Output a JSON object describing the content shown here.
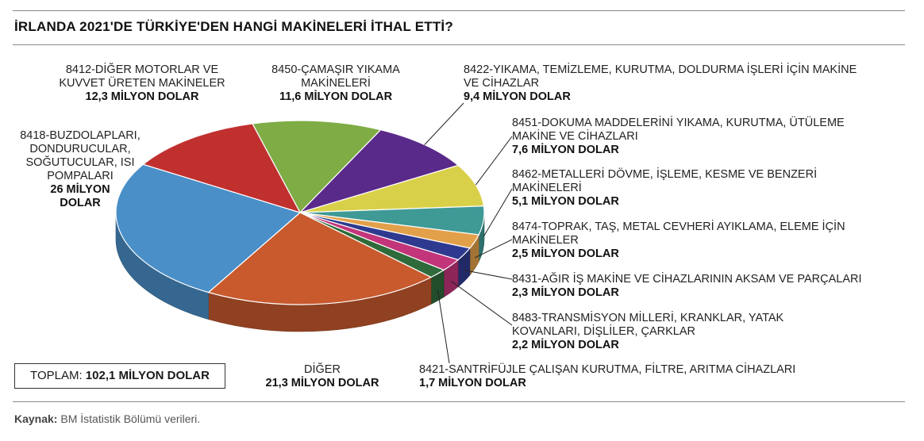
{
  "title": "İRLANDA 2021'DE TÜRKİYE'DEN HANGİ MAKİNELERİ İTHAL ETTİ?",
  "total": {
    "label": "TOPLAM:",
    "value": "102,1 MİLYON DOLAR"
  },
  "source": {
    "label": "Kaynak:",
    "text": "BM İstatistik Bölümü verileri."
  },
  "chart_data": {
    "type": "pie",
    "unit": "MİLYON DOLAR",
    "slices": [
      {
        "name": "8450-ÇAMAŞIR YIKAMA MAKİNELERİ",
        "value": 11.6,
        "label": "11,6 MİLYON DOLAR",
        "color": "#7fac45"
      },
      {
        "name": "8422-YIKAMA, TEMİZLEME, KURUTMA, DOLDURMA İŞLERİ İÇİN MAKİNE VE CİHAZLAR",
        "value": 9.4,
        "label": "9,4 MİLYON DOLAR",
        "color": "#5a2a8a"
      },
      {
        "name": "8451-DOKUMA MADDELERİNİ YIKAMA, KURUTMA, ÜTÜLEME MAKİNE VE CİHAZLARI",
        "value": 7.6,
        "label": "7,6 MİLYON DOLAR",
        "color": "#d9d04a"
      },
      {
        "name": "8462-METALLERİ DÖVME, İŞLEME, KESME VE BENZERİ MAKİNELERİ",
        "value": 5.1,
        "label": "5,1 MİLYON DOLAR",
        "color": "#3f9a96"
      },
      {
        "name": "8474-TOPRAK, TAŞ, METAL CEVHERİ AYIKLAMA, ELEME İÇİN MAKİNELER",
        "value": 2.5,
        "label": "2,5 MİLYON DOLAR",
        "color": "#e3a04a"
      },
      {
        "name": "8431-AĞIR İŞ MAKİNE VE CİHAZLARININ AKSAM VE PARÇALARI",
        "value": 2.3,
        "label": "2,3 MİLYON DOLAR",
        "color": "#2e3a8f"
      },
      {
        "name": "8483-TRANSMİSYON MİLLERİ, KRANKLAR, YATAK KOVANLARI, DİŞLİLER, ÇARKLAR",
        "value": 2.2,
        "label": "2,2 MİLYON DOLAR",
        "color": "#c2357a"
      },
      {
        "name": "8421-SANTRİFÜJLE ÇALIŞAN KURUTMA, FİLTRE, ARITMA CİHAZLARI",
        "value": 1.7,
        "label": "1,7 MİLYON DOLAR",
        "color": "#2f6b3a"
      },
      {
        "name": "DİĞER",
        "value": 21.3,
        "label": "21,3 MİLYON DOLAR",
        "color": "#c85a2e"
      },
      {
        "name": "8418-BUZDOLAPLARI, DONDURUCULAR, SOĞUTUCULAR, ISI POMPALARI",
        "value": 26,
        "label": "26 MİLYON DOLAR",
        "color": "#4a8fc8"
      },
      {
        "name": "8412-DİĞER MOTORLAR VE KUVVET ÜRETEN MAKİNELER",
        "value": 12.3,
        "label": "12,3 MİLYON DOLAR",
        "color": "#c0302f"
      }
    ],
    "legend": "none"
  },
  "labels": {
    "s0": {
      "line1": "8450-ÇAMAŞIR YIKAMA",
      "line2": "MAKİNELERİ"
    },
    "s1": {
      "line1": "8422-YIKAMA, TEMİZLEME, KURUTMA, DOLDURMA İŞLERİ İÇİN MAKİNE",
      "line2": "VE CİHAZLAR"
    },
    "s2": {
      "line1": "8451-DOKUMA MADDELERİNİ YIKAMA, KURUTMA, ÜTÜLEME",
      "line2": "MAKİNE VE CİHAZLARI"
    },
    "s3": {
      "line1": "8462-METALLERİ DÖVME, İŞLEME, KESME VE BENZERİ",
      "line2": "MAKİNELERİ"
    },
    "s4": {
      "line1": "8474-TOPRAK, TAŞ, METAL CEVHERİ AYIKLAMA, ELEME İÇİN",
      "line2": "MAKİNELER"
    },
    "s5": {
      "line1": "8431-AĞIR İŞ MAKİNE VE CİHAZLARININ AKSAM VE PARÇALARI"
    },
    "s6": {
      "line1": "8483-TRANSMİSYON MİLLERİ, KRANKLAR, YATAK",
      "line2": "KOVANLARI, DİŞLİLER, ÇARKLAR"
    },
    "s7": {
      "line1": "8421-SANTRİFÜJLE ÇALIŞAN KURUTMA, FİLTRE, ARITMA CİHAZLARI"
    },
    "s8": {
      "line1": "DİĞER"
    },
    "s9": {
      "line1": "8418-BUZDOLAPLARI,",
      "line2": "DONDURUCULAR,",
      "line3": "SOĞUTUCULAR, ISI",
      "line4": "POMPALARI",
      "value1": "26 MİLYON",
      "value2": "DOLAR"
    },
    "s10": {
      "line1": "8412-DİĞER MOTORLAR VE",
      "line2": "KUVVET ÜRETEN MAKİNELER"
    }
  }
}
